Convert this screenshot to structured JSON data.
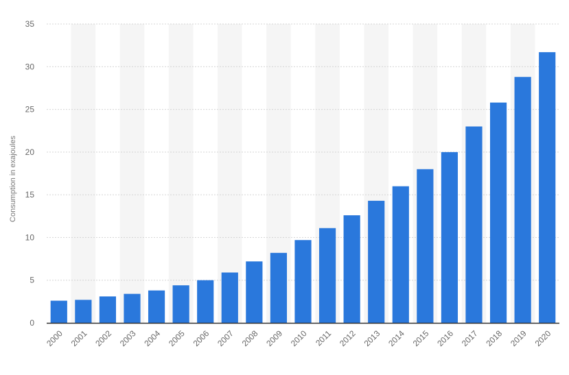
{
  "chart_data": {
    "type": "bar",
    "title": "",
    "xlabel": "",
    "ylabel": "Consumption in exajoules",
    "ylim": [
      0,
      35
    ],
    "yticks": [
      0,
      5,
      10,
      15,
      20,
      25,
      30,
      35
    ],
    "grid": true,
    "categories": [
      "2000",
      "2001",
      "2002",
      "2003",
      "2004",
      "2005",
      "2006",
      "2007",
      "2008",
      "2009",
      "2010",
      "2011",
      "2012",
      "2013",
      "2014",
      "2015",
      "2016",
      "2017",
      "2018",
      "2019",
      "2020"
    ],
    "values": [
      2.6,
      2.7,
      3.1,
      3.4,
      3.8,
      4.4,
      5.0,
      5.9,
      7.2,
      8.2,
      9.7,
      11.1,
      12.6,
      14.3,
      16.0,
      18.0,
      20.0,
      23.0,
      25.8,
      28.8,
      31.7
    ],
    "bar_color": "#2a78dc",
    "band_color": "#f5f5f5",
    "grid_color": "#d4d4d4",
    "axis_color": "#333333"
  }
}
